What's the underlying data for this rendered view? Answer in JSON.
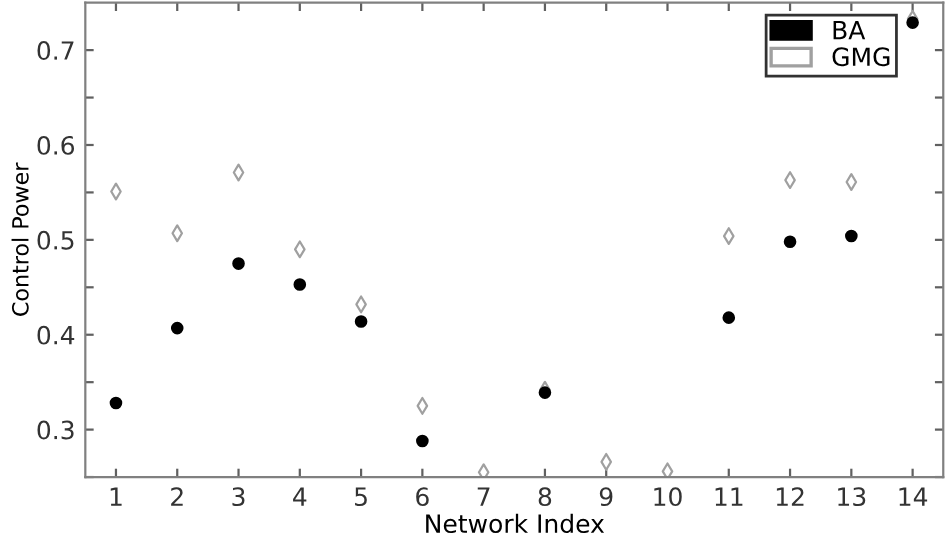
{
  "chart_data": {
    "type": "scatter",
    "xlabel": "Network Index",
    "ylabel": "Control Power",
    "x": [
      1,
      2,
      3,
      4,
      5,
      6,
      7,
      8,
      9,
      10,
      11,
      12,
      13,
      14
    ],
    "series": [
      {
        "name": "BA",
        "color": "#000000",
        "marker": "circle",
        "values": [
          0.328,
          0.407,
          0.475,
          0.453,
          0.414,
          0.288,
          null,
          0.339,
          null,
          null,
          0.418,
          0.498,
          0.504,
          0.729
        ]
      },
      {
        "name": "GMG",
        "color": "#a0a0a0",
        "marker": "diamond",
        "values": [
          0.551,
          0.507,
          0.571,
          0.49,
          0.432,
          0.325,
          0.255,
          0.342,
          0.266,
          0.256,
          0.504,
          0.563,
          0.561,
          0.733
        ]
      }
    ],
    "xlim": [
      0.5,
      14.5
    ],
    "ylim": [
      0.25,
      0.75
    ],
    "xticks": [
      1,
      2,
      3,
      4,
      5,
      6,
      7,
      8,
      9,
      10,
      11,
      12,
      13,
      14
    ],
    "yticks": [
      {
        "value": 0.25,
        "label": null
      },
      0.3,
      {
        "value": 0.35,
        "label": null
      },
      0.4,
      {
        "value": 0.45,
        "label": null
      },
      0.5,
      {
        "value": 0.55,
        "label": null
      },
      0.6,
      {
        "value": 0.65,
        "label": null
      },
      0.7
    ],
    "legend": "top right",
    "grid": false
  }
}
